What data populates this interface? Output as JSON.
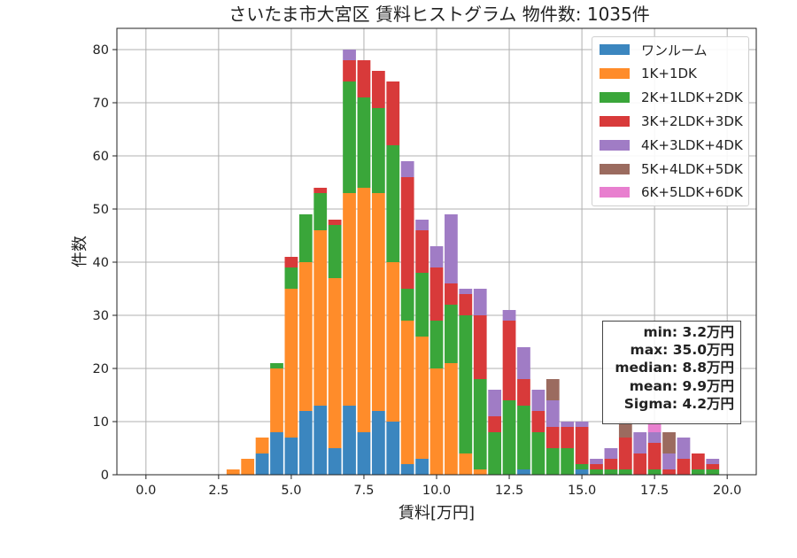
{
  "chart_data": {
    "type": "bar",
    "stacked": true,
    "title": "さいたま市大宮区 賃料ヒストグラム  物件数: 1035件",
    "xlabel": "賃料[万円]",
    "ylabel": "件数",
    "xlim": [
      -1.0,
      21.0
    ],
    "ylim": [
      0,
      84
    ],
    "xticks": [
      "0.0",
      "2.5",
      "5.0",
      "7.5",
      "10.0",
      "12.5",
      "15.0",
      "17.5",
      "20.0"
    ],
    "yticks": [
      "0",
      "10",
      "20",
      "30",
      "40",
      "50",
      "60",
      "70",
      "80"
    ],
    "bin_width": 0.5,
    "grid": true,
    "legend_position": "top-right",
    "x": [
      3.0,
      3.5,
      4.0,
      4.5,
      5.0,
      5.5,
      6.0,
      6.5,
      7.0,
      7.5,
      8.0,
      8.5,
      9.0,
      9.5,
      10.0,
      10.5,
      11.0,
      11.5,
      12.0,
      12.5,
      13.0,
      13.5,
      14.0,
      14.5,
      15.0,
      15.5,
      16.0,
      16.5,
      17.0,
      17.5,
      18.0,
      18.5,
      19.0,
      19.5
    ],
    "series": [
      {
        "name": "ワンルーム",
        "color": "#3b86bf",
        "values": [
          0,
          0,
          4,
          8,
          7,
          12,
          13,
          5,
          13,
          8,
          12,
          10,
          2,
          3,
          0,
          0,
          0,
          0,
          0,
          0,
          1,
          0,
          0,
          0,
          1,
          0,
          0,
          0,
          0,
          0,
          0,
          0,
          0,
          0
        ]
      },
      {
        "name": "1K+1DK",
        "color": "#ff8c2a",
        "values": [
          1,
          3,
          3,
          12,
          28,
          28,
          33,
          32,
          40,
          46,
          41,
          30,
          27,
          23,
          20,
          21,
          4,
          1,
          0,
          0,
          0,
          0,
          0,
          0,
          0,
          0,
          0,
          0,
          0,
          0,
          0,
          0,
          0,
          0
        ]
      },
      {
        "name": "2K+1LDK+2DK",
        "color": "#3aa63a",
        "values": [
          0,
          0,
          0,
          1,
          4,
          9,
          7,
          10,
          21,
          17,
          16,
          22,
          6,
          12,
          9,
          11,
          26,
          17,
          8,
          14,
          12,
          8,
          5,
          5,
          1,
          1,
          1,
          1,
          0,
          1,
          0,
          0,
          1,
          1
        ]
      },
      {
        "name": "3K+2LDK+3DK",
        "color": "#d83a3a",
        "values": [
          0,
          0,
          0,
          0,
          2,
          0,
          1,
          1,
          4,
          7,
          7,
          12,
          21,
          8,
          10,
          4,
          4,
          12,
          3,
          15,
          5,
          4,
          4,
          4,
          7,
          1,
          2,
          6,
          4,
          5,
          1,
          3,
          3,
          1
        ]
      },
      {
        "name": "4K+3LDK+4DK",
        "color": "#a07cc5",
        "values": [
          0,
          0,
          0,
          0,
          0,
          0,
          0,
          0,
          2,
          0,
          0,
          0,
          3,
          2,
          4,
          13,
          1,
          5,
          5,
          2,
          6,
          4,
          5,
          1,
          1,
          1,
          2,
          0,
          4,
          2,
          3,
          4,
          0,
          1
        ]
      },
      {
        "name": "5K+4LDK+5DK",
        "color": "#9b6b5f",
        "values": [
          0,
          0,
          0,
          0,
          0,
          0,
          0,
          0,
          0,
          0,
          0,
          0,
          0,
          0,
          0,
          0,
          0,
          0,
          0,
          0,
          0,
          0,
          4,
          0,
          0,
          0,
          0,
          3,
          0,
          0,
          4,
          0,
          0,
          0
        ]
      },
      {
        "name": "6K+5LDK+6DK",
        "color": "#e87fcf",
        "values": [
          0,
          0,
          0,
          0,
          0,
          0,
          0,
          0,
          0,
          0,
          0,
          0,
          0,
          0,
          0,
          0,
          0,
          0,
          0,
          0,
          0,
          0,
          0,
          0,
          0,
          0,
          0,
          0,
          0,
          2,
          0,
          0,
          0,
          0
        ]
      }
    ],
    "stats": [
      "min: 3.2万円",
      "max: 35.0万円",
      "median: 8.8万円",
      "mean: 9.9万円",
      "Sigma: 4.2万円"
    ]
  }
}
